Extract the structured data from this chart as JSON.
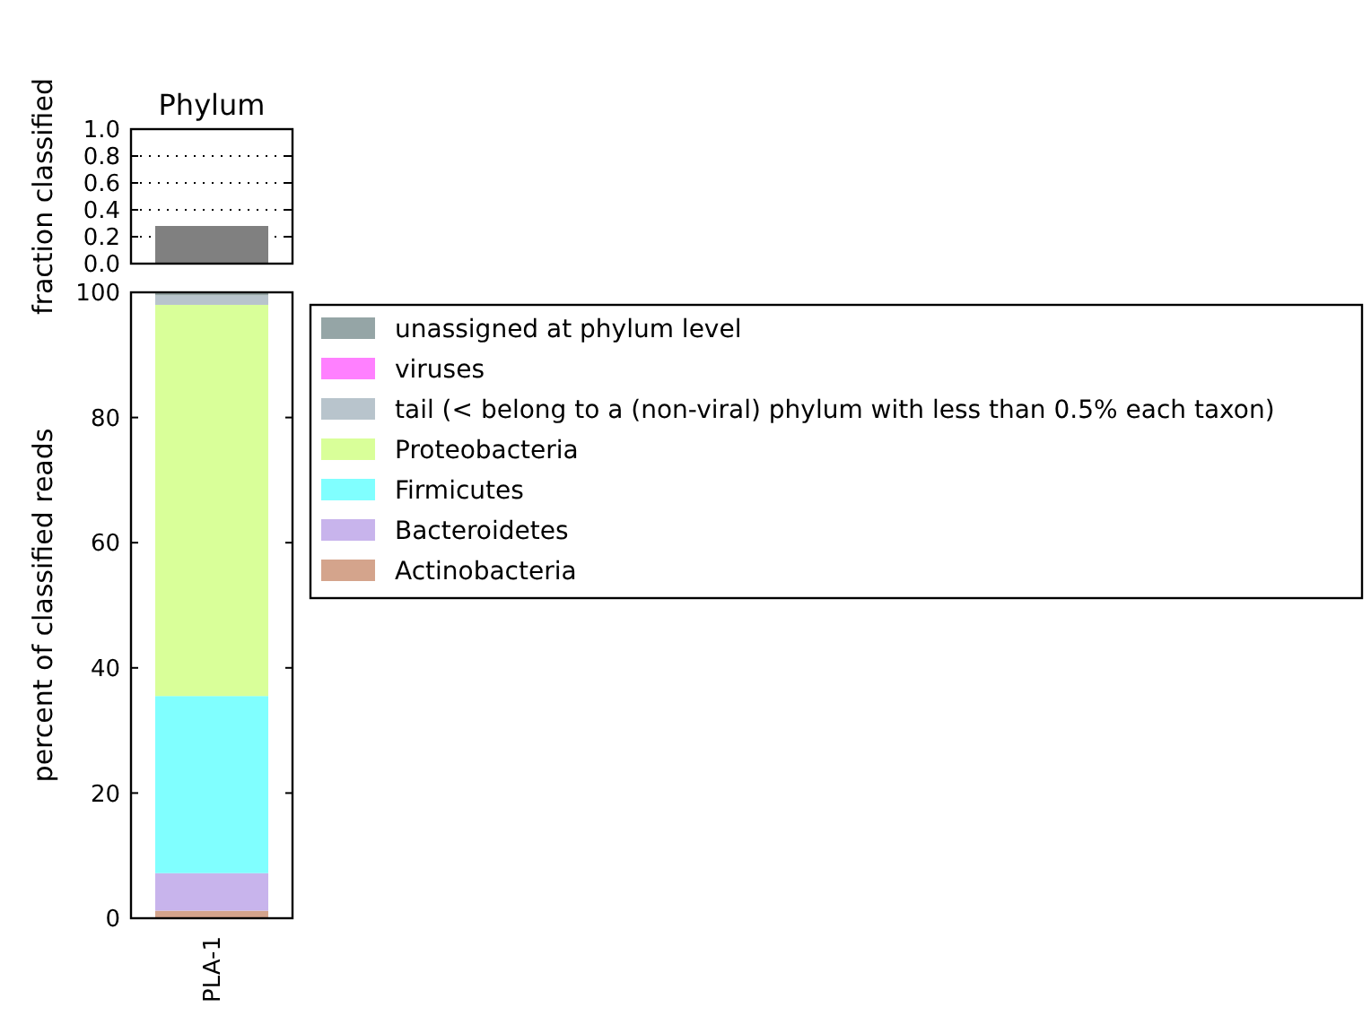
{
  "chart_data": [
    {
      "type": "bar",
      "title": "Phylum",
      "ylabel": "fraction classified",
      "categories": [
        null
      ],
      "values": [
        0.28
      ],
      "color": "#808080",
      "ylim": [
        0,
        1
      ],
      "yticks": [
        {
          "value": 0,
          "label": "0.0"
        },
        0.2,
        0.4,
        0.6,
        0.8,
        {
          "value": 1,
          "label": "1.0"
        }
      ],
      "grid": "y",
      "tick_labels": "y"
    },
    {
      "type": "bar",
      "ylabel": "percent of classified reads",
      "categories": [
        "PLA-1"
      ],
      "stacked": true,
      "ylim": [
        0,
        100
      ],
      "yticks": [
        0,
        20,
        40,
        60,
        80,
        100
      ],
      "legend": "right",
      "series": [
        {
          "name": "Actinobacteria",
          "color": "#d4a48c",
          "values": [
            1.2
          ]
        },
        {
          "name": "Bacteroidetes",
          "color": "#c8b4ec",
          "values": [
            6
          ]
        },
        {
          "name": "Firmicutes",
          "color": "#80ffff",
          "values": [
            28.3
          ]
        },
        {
          "name": "Proteobacteria",
          "color": "#d9ff99",
          "values": [
            62.5
          ]
        },
        {
          "name": "tail (< belong to a (non-viral) phylum with less than 0.5% each taxon)",
          "color": "#b8c4cc",
          "values": [
            1.5
          ]
        },
        {
          "name": "viruses",
          "color": "#ff80ff",
          "values": [
            0
          ]
        },
        {
          "name": "unassigned at phylum level",
          "color": "#95a5a6",
          "values": [
            0.5
          ]
        }
      ]
    }
  ]
}
